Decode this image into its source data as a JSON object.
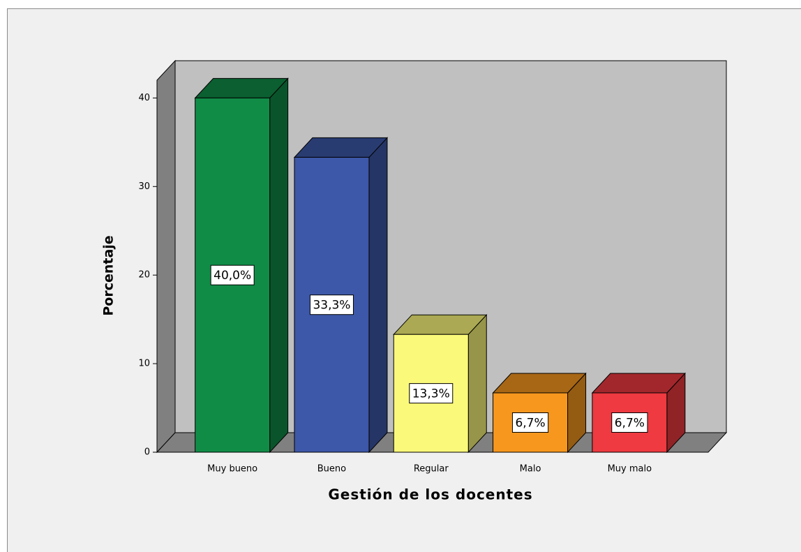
{
  "chart_data": {
    "type": "bar3d",
    "x_label": "Gestión de los docentes",
    "y_label": "Porcentaje",
    "categories": [
      "Muy bueno",
      "Bueno",
      "Regular",
      "Malo",
      "Muy malo"
    ],
    "values": [
      40,
      33.3,
      13.3,
      6.7,
      6.7
    ],
    "value_labels": [
      "40,0%",
      "33,3%",
      "13,3%",
      "6,7%",
      "6,7%"
    ],
    "colors": [
      "#108c47",
      "#3d58a8",
      "#fbf97a",
      "#f7971e",
      "#ee3a40"
    ],
    "ylim": [
      0,
      42
    ],
    "yticks": [
      0,
      10,
      20,
      30,
      40
    ],
    "grid": false
  }
}
